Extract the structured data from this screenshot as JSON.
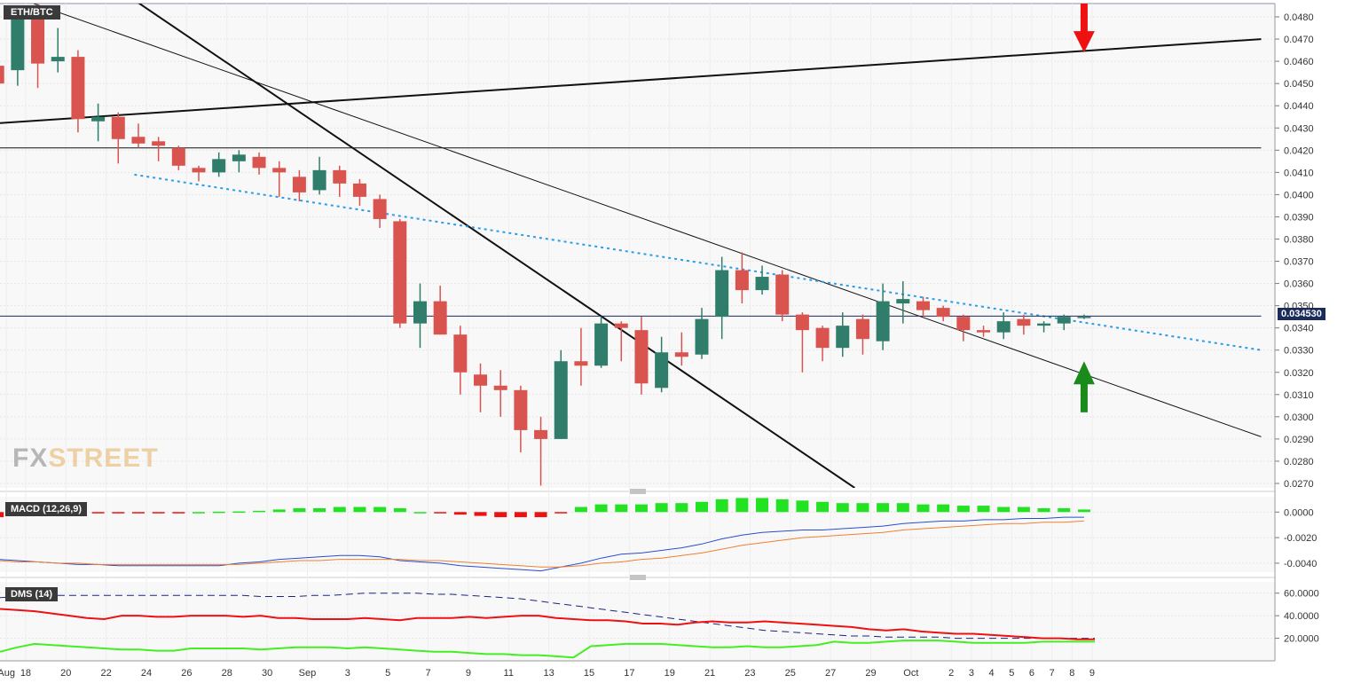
{
  "symbol": "ETH/BTC",
  "brand": {
    "part1": "FX",
    "part2": "STREET"
  },
  "current_price_label": "0.034530",
  "macd_label": "MACD (12,26,9)",
  "dms_label": "DMS (14)",
  "colors": {
    "up": "#2f7d6a",
    "down": "#d9534f",
    "macd_pos": "#22e322",
    "macd_neg": "#ee1111",
    "macd_line": "#2a4dd0",
    "signal_line": "#f08030",
    "dms_pos": "#44ee22",
    "dms_neg": "#ee1111",
    "adx": "#1a237e",
    "dotted_trend": "#2a9de8",
    "arrow_down": "#ee1111",
    "arrow_up": "#1a8a1a"
  },
  "chart_data": {
    "type": "candlestick",
    "x_tick_labels": [
      "Aug",
      "18",
      "20",
      "22",
      "24",
      "26",
      "28",
      "30",
      "Sep",
      "3",
      "5",
      "7",
      "9",
      "11",
      "13",
      "15",
      "17",
      "19",
      "21",
      "23",
      "25",
      "27",
      "29",
      "Oct",
      "2",
      "3",
      "4",
      "5",
      "6",
      "7",
      "8",
      "9"
    ],
    "y_tick_labels": [
      "0.0480",
      "0.0470",
      "0.0460",
      "0.0450",
      "0.0440",
      "0.0430",
      "0.0420",
      "0.0410",
      "0.0400",
      "0.0390",
      "0.0380",
      "0.0370",
      "0.0360",
      "0.0350",
      "0.0340",
      "0.0330",
      "0.0320",
      "0.0310",
      "0.0300",
      "0.0290",
      "0.0280",
      "0.0270"
    ],
    "ylim": [
      0.0268,
      0.0486
    ],
    "last_price": 0.03453,
    "candles": [
      {
        "x": 0,
        "o": 0.0458,
        "h": 0.0462,
        "l": 0.0447,
        "c": 0.045
      },
      {
        "x": 1,
        "o": 0.0456,
        "h": 0.0485,
        "l": 0.0449,
        "c": 0.0482
      },
      {
        "x": 2,
        "o": 0.0482,
        "h": 0.0488,
        "l": 0.0448,
        "c": 0.0459
      },
      {
        "x": 3,
        "o": 0.046,
        "h": 0.0475,
        "l": 0.0455,
        "c": 0.0462
      },
      {
        "x": 4,
        "o": 0.0462,
        "h": 0.0465,
        "l": 0.0428,
        "c": 0.0434
      },
      {
        "x": 5,
        "o": 0.0433,
        "h": 0.0441,
        "l": 0.0424,
        "c": 0.0435
      },
      {
        "x": 6,
        "o": 0.0435,
        "h": 0.0437,
        "l": 0.0414,
        "c": 0.0425
      },
      {
        "x": 7,
        "o": 0.0426,
        "h": 0.0432,
        "l": 0.0421,
        "c": 0.0423
      },
      {
        "x": 8,
        "o": 0.0424,
        "h": 0.0426,
        "l": 0.0415,
        "c": 0.0422
      },
      {
        "x": 9,
        "o": 0.0421,
        "h": 0.0422,
        "l": 0.0411,
        "c": 0.0413
      },
      {
        "x": 10,
        "o": 0.0412,
        "h": 0.0413,
        "l": 0.0406,
        "c": 0.041
      },
      {
        "x": 11,
        "o": 0.041,
        "h": 0.0419,
        "l": 0.0408,
        "c": 0.0416
      },
      {
        "x": 12,
        "o": 0.0415,
        "h": 0.042,
        "l": 0.041,
        "c": 0.0418
      },
      {
        "x": 13,
        "o": 0.0417,
        "h": 0.0419,
        "l": 0.0409,
        "c": 0.0412
      },
      {
        "x": 14,
        "o": 0.0412,
        "h": 0.0415,
        "l": 0.0399,
        "c": 0.041
      },
      {
        "x": 15,
        "o": 0.0408,
        "h": 0.0411,
        "l": 0.0397,
        "c": 0.0401
      },
      {
        "x": 16,
        "o": 0.0402,
        "h": 0.0417,
        "l": 0.04,
        "c": 0.0411
      },
      {
        "x": 17,
        "o": 0.0411,
        "h": 0.0413,
        "l": 0.0399,
        "c": 0.0405
      },
      {
        "x": 18,
        "o": 0.0405,
        "h": 0.0407,
        "l": 0.0395,
        "c": 0.0399
      },
      {
        "x": 19,
        "o": 0.0398,
        "h": 0.04,
        "l": 0.0385,
        "c": 0.0389
      },
      {
        "x": 20,
        "o": 0.0388,
        "h": 0.0389,
        "l": 0.034,
        "c": 0.0342
      },
      {
        "x": 21,
        "o": 0.0342,
        "h": 0.036,
        "l": 0.0331,
        "c": 0.0352
      },
      {
        "x": 22,
        "o": 0.0352,
        "h": 0.0359,
        "l": 0.0337,
        "c": 0.0337
      },
      {
        "x": 23,
        "o": 0.0337,
        "h": 0.0341,
        "l": 0.031,
        "c": 0.032
      },
      {
        "x": 24,
        "o": 0.0319,
        "h": 0.0324,
        "l": 0.0302,
        "c": 0.0314
      },
      {
        "x": 25,
        "o": 0.0314,
        "h": 0.0321,
        "l": 0.03,
        "c": 0.0312
      },
      {
        "x": 26,
        "o": 0.0312,
        "h": 0.0314,
        "l": 0.0284,
        "c": 0.0294
      },
      {
        "x": 27,
        "o": 0.0294,
        "h": 0.03,
        "l": 0.0269,
        "c": 0.029
      },
      {
        "x": 28,
        "o": 0.029,
        "h": 0.033,
        "l": 0.029,
        "c": 0.0325
      },
      {
        "x": 29,
        "o": 0.0325,
        "h": 0.034,
        "l": 0.0314,
        "c": 0.0323
      },
      {
        "x": 30,
        "o": 0.0323,
        "h": 0.0345,
        "l": 0.0322,
        "c": 0.0342
      },
      {
        "x": 31,
        "o": 0.0342,
        "h": 0.0343,
        "l": 0.0325,
        "c": 0.034
      },
      {
        "x": 32,
        "o": 0.0339,
        "h": 0.0345,
        "l": 0.031,
        "c": 0.0315
      },
      {
        "x": 33,
        "o": 0.0313,
        "h": 0.0336,
        "l": 0.0311,
        "c": 0.0329
      },
      {
        "x": 34,
        "o": 0.0329,
        "h": 0.0338,
        "l": 0.0323,
        "c": 0.0327
      },
      {
        "x": 35,
        "o": 0.0328,
        "h": 0.0349,
        "l": 0.0326,
        "c": 0.0344
      },
      {
        "x": 36,
        "o": 0.0345,
        "h": 0.0372,
        "l": 0.0335,
        "c": 0.0366
      },
      {
        "x": 37,
        "o": 0.0366,
        "h": 0.0374,
        "l": 0.0351,
        "c": 0.0357
      },
      {
        "x": 38,
        "o": 0.0357,
        "h": 0.0368,
        "l": 0.0355,
        "c": 0.0363
      },
      {
        "x": 39,
        "o": 0.0364,
        "h": 0.0366,
        "l": 0.0343,
        "c": 0.0346
      },
      {
        "x": 40,
        "o": 0.0346,
        "h": 0.0347,
        "l": 0.032,
        "c": 0.0339
      },
      {
        "x": 41,
        "o": 0.034,
        "h": 0.0341,
        "l": 0.0325,
        "c": 0.0331
      },
      {
        "x": 42,
        "o": 0.0331,
        "h": 0.0347,
        "l": 0.0327,
        "c": 0.0341
      },
      {
        "x": 43,
        "o": 0.0344,
        "h": 0.0346,
        "l": 0.0328,
        "c": 0.0335
      },
      {
        "x": 44,
        "o": 0.0334,
        "h": 0.036,
        "l": 0.033,
        "c": 0.0352
      },
      {
        "x": 45,
        "o": 0.0351,
        "h": 0.0361,
        "l": 0.0342,
        "c": 0.0353
      },
      {
        "x": 46,
        "o": 0.0352,
        "h": 0.0354,
        "l": 0.0345,
        "c": 0.0348
      },
      {
        "x": 47,
        "o": 0.0349,
        "h": 0.035,
        "l": 0.0343,
        "c": 0.0345
      },
      {
        "x": 48,
        "o": 0.0345,
        "h": 0.0346,
        "l": 0.0334,
        "c": 0.0339
      },
      {
        "x": 49,
        "o": 0.0339,
        "h": 0.0341,
        "l": 0.0336,
        "c": 0.0338
      },
      {
        "x": 50,
        "o": 0.0338,
        "h": 0.0347,
        "l": 0.0335,
        "c": 0.0343
      },
      {
        "x": 51,
        "o": 0.0344,
        "h": 0.0346,
        "l": 0.0337,
        "c": 0.0341
      },
      {
        "x": 52,
        "o": 0.0341,
        "h": 0.0343,
        "l": 0.0338,
        "c": 0.0342
      },
      {
        "x": 53,
        "o": 0.0342,
        "h": 0.0346,
        "l": 0.0339,
        "c": 0.0345
      },
      {
        "x": 54,
        "o": 0.0345,
        "h": 0.0346,
        "l": 0.0344,
        "c": 0.0345
      }
    ],
    "trendlines": [
      {
        "id": "rising-resistance",
        "style": "solid-thick",
        "x1": -0.2,
        "y1": 0.0432,
        "x2": 62.8,
        "y2": 0.047
      },
      {
        "id": "steep-descending",
        "style": "solid-thick",
        "x1": 6.4,
        "y1": 0.049,
        "x2": 42.6,
        "y2": 0.0268
      },
      {
        "id": "long-descending",
        "style": "solid-thin",
        "x1": 1.8,
        "y1": 0.0486,
        "x2": 62.8,
        "y2": 0.0291
      },
      {
        "id": "dotted-descending",
        "style": "dotted",
        "x1": 6.8,
        "y1": 0.0409,
        "x2": 62.8,
        "y2": 0.033
      },
      {
        "id": "horizontal-0421",
        "style": "solid-thin",
        "x1": -0.2,
        "y1": 0.0421,
        "x2": 62.8,
        "y2": 0.0421
      },
      {
        "id": "current-price-line",
        "style": "solid-thin-navy",
        "x1": -0.2,
        "y1": 0.03453,
        "x2": 62.8,
        "y2": 0.03453
      }
    ],
    "annotations": [
      {
        "type": "arrow-down",
        "x": 54,
        "y_tip": 0.0464,
        "y_tail": 0.0486
      },
      {
        "type": "arrow-up",
        "x": 54,
        "y_tip": 0.0325,
        "y_tail": 0.0302
      }
    ],
    "macd": {
      "y_tick_labels": [
        "0.0000",
        "-0.0020",
        "-0.0040"
      ],
      "ylim": [
        -0.0047,
        0.0012
      ],
      "histogram": [
        -0.0004,
        -0.0003,
        -0.0003,
        -0.0002,
        -0.0002,
        -0.0001,
        -0.0001,
        -0.0001,
        -5e-05,
        -3e-05,
        0.0,
        3e-05,
        5e-05,
        0.0001,
        0.0002,
        0.0003,
        0.0003,
        0.0004,
        0.0004,
        0.0004,
        0.0003,
        0.0,
        -0.0001,
        -0.0002,
        -0.0003,
        -0.0004,
        -0.0004,
        -0.0004,
        -0.0001,
        0.0004,
        0.0006,
        0.0006,
        0.0006,
        0.0007,
        0.0007,
        0.0008,
        0.001,
        0.0011,
        0.0011,
        0.001,
        0.0009,
        0.0008,
        0.0007,
        0.0007,
        0.0007,
        0.0007,
        0.0006,
        0.0006,
        0.0005,
        0.0005,
        0.0004,
        0.0004,
        0.0003,
        0.0003,
        0.0002
      ],
      "macd_line": [
        -0.0037,
        -0.0038,
        -0.0039,
        -0.004,
        -0.0041,
        -0.0041,
        -0.0042,
        -0.0042,
        -0.0042,
        -0.0042,
        -0.0042,
        -0.0042,
        -0.004,
        -0.0039,
        -0.0037,
        -0.0036,
        -0.0035,
        -0.0034,
        -0.0034,
        -0.0035,
        -0.0038,
        -0.0039,
        -0.004,
        -0.0042,
        -0.0043,
        -0.0044,
        -0.0045,
        -0.0046,
        -0.0043,
        -0.004,
        -0.0036,
        -0.0033,
        -0.0032,
        -0.003,
        -0.0028,
        -0.0025,
        -0.0021,
        -0.0018,
        -0.0016,
        -0.0015,
        -0.0014,
        -0.0014,
        -0.0013,
        -0.0012,
        -0.0011,
        -0.0009,
        -0.0008,
        -0.0007,
        -0.0007,
        -0.0006,
        -0.0006,
        -0.0005,
        -0.0005,
        -0.0004,
        -0.0004
      ],
      "signal_line": [
        -0.0038,
        -0.0039,
        -0.0039,
        -0.004,
        -0.004,
        -0.0041,
        -0.0041,
        -0.0041,
        -0.0041,
        -0.0041,
        -0.0041,
        -0.0041,
        -0.0041,
        -0.004,
        -0.0039,
        -0.0038,
        -0.0038,
        -0.0037,
        -0.0037,
        -0.0037,
        -0.0037,
        -0.0038,
        -0.0038,
        -0.0039,
        -0.004,
        -0.0041,
        -0.0042,
        -0.0043,
        -0.0043,
        -0.0042,
        -0.004,
        -0.0039,
        -0.0037,
        -0.0036,
        -0.0034,
        -0.0032,
        -0.0029,
        -0.0026,
        -0.0024,
        -0.0022,
        -0.002,
        -0.0019,
        -0.0018,
        -0.0017,
        -0.0016,
        -0.0014,
        -0.0013,
        -0.0012,
        -0.0011,
        -0.001,
        -0.0009,
        -0.0009,
        -0.0008,
        -0.0008,
        -0.0007
      ]
    },
    "dms": {
      "y_tick_labels": [
        "60.0000",
        "40.0000",
        "20.0000"
      ],
      "ylim": [
        0,
        70
      ],
      "di_minus": [
        46,
        45,
        44,
        42,
        40,
        38,
        37,
        40,
        40,
        39,
        39,
        40,
        40,
        40,
        39,
        40,
        38,
        38,
        37,
        37,
        37,
        38,
        37,
        36,
        38,
        38,
        38,
        39,
        38,
        39,
        40,
        40,
        38,
        37,
        36,
        36,
        35,
        33,
        33,
        32,
        34,
        35,
        34,
        34,
        35,
        34,
        33,
        32,
        31,
        30,
        28,
        27,
        28,
        26,
        25,
        24,
        24,
        23,
        22,
        21,
        20,
        20,
        19,
        19
      ],
      "di_plus": [
        8,
        12,
        15,
        14,
        13,
        12,
        11,
        10,
        10,
        9,
        9,
        11,
        11,
        11,
        11,
        10,
        11,
        12,
        12,
        12,
        11,
        12,
        11,
        10,
        9,
        8,
        8,
        7,
        6,
        6,
        5,
        5,
        4,
        3,
        13,
        14,
        15,
        15,
        15,
        14,
        13,
        12,
        12,
        13,
        12,
        12,
        13,
        14,
        17,
        16,
        16,
        17,
        18,
        18,
        18,
        17,
        16,
        16,
        16,
        16,
        17,
        17,
        17,
        17
      ],
      "adx": [
        56,
        57,
        57,
        58,
        58,
        58,
        58,
        58,
        58,
        58,
        58,
        58,
        58,
        58,
        58,
        57,
        57,
        57,
        58,
        58,
        59,
        60,
        60,
        60,
        60,
        59,
        59,
        58,
        57,
        56,
        55,
        53,
        51,
        49,
        47,
        45,
        43,
        41,
        39,
        37,
        35,
        33,
        31,
        29,
        27,
        26,
        25,
        24,
        23,
        22,
        22,
        21,
        21,
        21,
        21,
        20,
        20,
        20,
        20,
        20,
        20,
        20,
        20,
        20
      ]
    }
  }
}
